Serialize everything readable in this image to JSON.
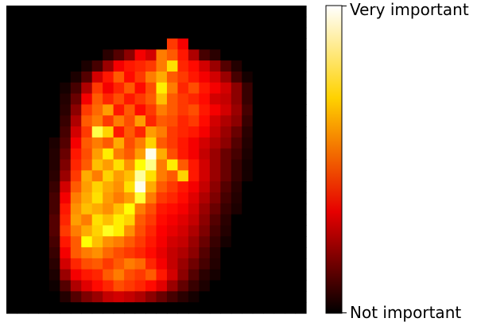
{
  "chart_data": {
    "type": "heatmap",
    "title": "",
    "xlabel": "",
    "ylabel": "",
    "grid": false,
    "axes": "off",
    "rows": 28,
    "cols": 28,
    "value_range": [
      0,
      1
    ],
    "colormap": "hot",
    "colormap_stops": [
      "#000000",
      "#e60000",
      "#ffd200",
      "#ffffff"
    ],
    "colorbar": {
      "placement": "right",
      "top_label": "Very important",
      "bottom_label": "Not important"
    },
    "values": [
      [
        0,
        0,
        0,
        0,
        0,
        0,
        0,
        0,
        0,
        0,
        0,
        0,
        0,
        0,
        0,
        0,
        0,
        0,
        0,
        0,
        0,
        0,
        0,
        0,
        0,
        0,
        0,
        0
      ],
      [
        0,
        0,
        0,
        0,
        0,
        0,
        0,
        0,
        0,
        0,
        0,
        0,
        0,
        0,
        0,
        0,
        0,
        0,
        0,
        0,
        0,
        0,
        0,
        0,
        0,
        0,
        0,
        0
      ],
      [
        0,
        0,
        0,
        0,
        0,
        0,
        0,
        0,
        0,
        0,
        0,
        0,
        0,
        0,
        0,
        0,
        0,
        0,
        0,
        0,
        0,
        0,
        0,
        0,
        0,
        0,
        0,
        0
      ],
      [
        0,
        0,
        0,
        0,
        0,
        0,
        0,
        0,
        0,
        0,
        0,
        0,
        0,
        0,
        0,
        0.45,
        0.35,
        0,
        0,
        0,
        0,
        0,
        0,
        0,
        0,
        0,
        0,
        0
      ],
      [
        0,
        0,
        0,
        0,
        0,
        0,
        0,
        0,
        0,
        0.06,
        0.12,
        0.2,
        0.35,
        0.3,
        0.55,
        0.5,
        0.4,
        0.25,
        0.1,
        0.06,
        0,
        0,
        0,
        0,
        0,
        0,
        0,
        0
      ],
      [
        0,
        0,
        0,
        0,
        0,
        0,
        0,
        0.04,
        0.1,
        0.22,
        0.35,
        0.4,
        0.42,
        0.45,
        0.55,
        0.7,
        0.42,
        0.38,
        0.3,
        0.22,
        0.12,
        0.05,
        0,
        0,
        0,
        0,
        0,
        0
      ],
      [
        0,
        0,
        0,
        0,
        0,
        0,
        0.04,
        0.12,
        0.3,
        0.4,
        0.5,
        0.38,
        0.45,
        0.55,
        0.62,
        0.5,
        0.45,
        0.4,
        0.35,
        0.3,
        0.22,
        0.1,
        0.03,
        0,
        0,
        0,
        0,
        0
      ],
      [
        0,
        0,
        0,
        0,
        0,
        0.03,
        0.1,
        0.25,
        0.45,
        0.35,
        0.42,
        0.5,
        0.38,
        0.48,
        0.72,
        0.55,
        0.42,
        0.48,
        0.4,
        0.35,
        0.3,
        0.2,
        0.08,
        0,
        0,
        0,
        0,
        0
      ],
      [
        0,
        0,
        0,
        0,
        0,
        0.05,
        0.15,
        0.35,
        0.5,
        0.42,
        0.48,
        0.4,
        0.45,
        0.5,
        0.65,
        0.5,
        0.45,
        0.42,
        0.38,
        0.3,
        0.28,
        0.2,
        0.08,
        0,
        0,
        0,
        0,
        0
      ],
      [
        0,
        0,
        0,
        0,
        0,
        0.06,
        0.2,
        0.45,
        0.52,
        0.6,
        0.4,
        0.5,
        0.38,
        0.45,
        0.55,
        0.5,
        0.45,
        0.48,
        0.4,
        0.35,
        0.3,
        0.22,
        0.1,
        0,
        0,
        0,
        0,
        0
      ],
      [
        0,
        0,
        0,
        0,
        0,
        0.08,
        0.25,
        0.5,
        0.55,
        0.45,
        0.55,
        0.48,
        0.6,
        0.42,
        0.5,
        0.48,
        0.42,
        0.45,
        0.38,
        0.3,
        0.25,
        0.2,
        0.08,
        0,
        0,
        0,
        0,
        0
      ],
      [
        0,
        0,
        0,
        0,
        0,
        0.1,
        0.3,
        0.45,
        0.82,
        0.68,
        0.4,
        0.5,
        0.42,
        0.6,
        0.55,
        0.45,
        0.42,
        0.4,
        0.35,
        0.28,
        0.22,
        0.15,
        0.06,
        0,
        0,
        0,
        0,
        0
      ],
      [
        0,
        0,
        0,
        0,
        0.04,
        0.12,
        0.35,
        0.5,
        0.55,
        0.5,
        0.62,
        0.48,
        0.55,
        0.68,
        0.5,
        0.45,
        0.4,
        0.35,
        0.3,
        0.25,
        0.2,
        0.12,
        0.05,
        0,
        0,
        0,
        0,
        0
      ],
      [
        0,
        0,
        0,
        0,
        0.05,
        0.15,
        0.4,
        0.48,
        0.6,
        0.72,
        0.55,
        0.5,
        0.6,
        0.98,
        0.62,
        0.48,
        0.4,
        0.35,
        0.28,
        0.22,
        0.15,
        0.1,
        0.04,
        0,
        0,
        0,
        0,
        0
      ],
      [
        0,
        0,
        0,
        0,
        0.05,
        0.18,
        0.42,
        0.5,
        0.65,
        0.6,
        0.7,
        0.58,
        0.75,
        0.88,
        0.55,
        0.72,
        0.5,
        0.4,
        0.3,
        0.22,
        0.15,
        0.08,
        0.03,
        0,
        0,
        0,
        0,
        0
      ],
      [
        0,
        0,
        0,
        0,
        0.06,
        0.22,
        0.45,
        0.62,
        0.55,
        0.68,
        0.6,
        0.65,
        0.9,
        0.7,
        0.55,
        0.5,
        0.68,
        0.4,
        0.3,
        0.22,
        0.15,
        0.08,
        0.03,
        0,
        0,
        0,
        0,
        0
      ],
      [
        0,
        0,
        0,
        0,
        0.08,
        0.3,
        0.5,
        0.6,
        0.68,
        0.62,
        0.58,
        0.7,
        0.98,
        0.62,
        0.5,
        0.45,
        0.4,
        0.35,
        0.28,
        0.2,
        0.12,
        0.06,
        0,
        0,
        0,
        0,
        0,
        0
      ],
      [
        0,
        0,
        0,
        0,
        0.1,
        0.35,
        0.55,
        0.62,
        0.7,
        0.6,
        0.55,
        0.6,
        0.8,
        0.55,
        0.45,
        0.42,
        0.38,
        0.32,
        0.25,
        0.18,
        0.1,
        0.05,
        0,
        0,
        0,
        0,
        0,
        0
      ],
      [
        0,
        0,
        0,
        0,
        0.1,
        0.4,
        0.58,
        0.65,
        0.62,
        0.58,
        0.65,
        0.75,
        0.55,
        0.48,
        0.4,
        0.38,
        0.35,
        0.3,
        0.22,
        0.15,
        0.08,
        0.04,
        0,
        0,
        0,
        0,
        0,
        0
      ],
      [
        0,
        0,
        0,
        0,
        0.12,
        0.42,
        0.6,
        0.55,
        0.7,
        0.65,
        0.72,
        0.68,
        0.5,
        0.45,
        0.38,
        0.35,
        0.32,
        0.28,
        0.2,
        0.12,
        0.06,
        0,
        0,
        0,
        0,
        0,
        0,
        0
      ],
      [
        0,
        0,
        0,
        0,
        0.12,
        0.45,
        0.55,
        0.62,
        0.68,
        0.78,
        0.72,
        0.58,
        0.48,
        0.42,
        0.36,
        0.33,
        0.3,
        0.25,
        0.18,
        0.1,
        0.05,
        0,
        0,
        0,
        0,
        0,
        0,
        0
      ],
      [
        0,
        0,
        0,
        0,
        0.1,
        0.4,
        0.5,
        0.75,
        0.65,
        0.58,
        0.55,
        0.5,
        0.45,
        0.4,
        0.35,
        0.3,
        0.28,
        0.22,
        0.15,
        0.08,
        0.03,
        0,
        0,
        0,
        0,
        0,
        0,
        0
      ],
      [
        0,
        0,
        0,
        0,
        0.08,
        0.35,
        0.5,
        0.55,
        0.58,
        0.52,
        0.48,
        0.45,
        0.42,
        0.38,
        0.33,
        0.28,
        0.25,
        0.2,
        0.12,
        0.06,
        0,
        0,
        0,
        0,
        0,
        0,
        0,
        0
      ],
      [
        0,
        0,
        0,
        0,
        0.06,
        0.3,
        0.42,
        0.48,
        0.5,
        0.45,
        0.5,
        0.55,
        0.52,
        0.42,
        0.35,
        0.28,
        0.22,
        0.16,
        0.1,
        0.05,
        0,
        0,
        0,
        0,
        0,
        0,
        0,
        0
      ],
      [
        0,
        0,
        0,
        0,
        0.04,
        0.22,
        0.35,
        0.4,
        0.42,
        0.5,
        0.55,
        0.48,
        0.45,
        0.5,
        0.4,
        0.3,
        0.2,
        0.12,
        0.06,
        0.03,
        0,
        0,
        0,
        0,
        0,
        0,
        0,
        0
      ],
      [
        0,
        0,
        0,
        0,
        0.02,
        0.12,
        0.25,
        0.32,
        0.38,
        0.42,
        0.48,
        0.45,
        0.42,
        0.38,
        0.32,
        0.22,
        0.14,
        0.08,
        0.04,
        0,
        0,
        0,
        0,
        0,
        0,
        0,
        0,
        0
      ],
      [
        0,
        0,
        0,
        0,
        0,
        0.05,
        0.12,
        0.18,
        0.22,
        0.28,
        0.3,
        0.28,
        0.25,
        0.2,
        0.15,
        0.1,
        0.06,
        0.03,
        0,
        0,
        0,
        0,
        0,
        0,
        0,
        0,
        0,
        0
      ],
      [
        0,
        0,
        0,
        0,
        0,
        0,
        0,
        0,
        0,
        0,
        0,
        0,
        0,
        0,
        0,
        0,
        0,
        0,
        0,
        0,
        0,
        0,
        0,
        0,
        0,
        0,
        0,
        0
      ]
    ]
  }
}
